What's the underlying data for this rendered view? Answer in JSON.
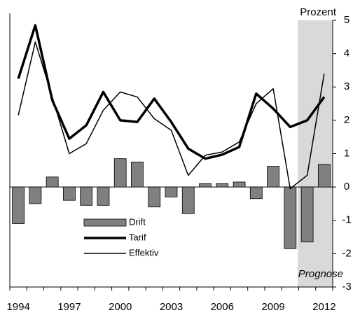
{
  "chart_data": {
    "type": "bar-line",
    "y_axis_label": "Prozent",
    "annotation": "Prognose",
    "categories": [
      "1994",
      null,
      null,
      "1997",
      null,
      null,
      "2000",
      null,
      null,
      "2003",
      null,
      null,
      "2006",
      null,
      null,
      "2009",
      null,
      null,
      "2012"
    ],
    "series": [
      {
        "name": "Drift",
        "type": "bar",
        "color": "#808080",
        "values": [
          -1.1,
          -0.5,
          0.3,
          -0.4,
          -0.55,
          -0.55,
          0.85,
          0.75,
          -0.6,
          -0.3,
          -0.8,
          0.1,
          0.1,
          0.15,
          -0.35,
          0.62,
          -1.85,
          -1.65,
          0.68
        ]
      },
      {
        "name": "Tarif",
        "type": "line",
        "color": "#000000",
        "values": [
          3.25,
          4.85,
          2.6,
          1.45,
          1.85,
          2.85,
          2.0,
          1.95,
          2.65,
          1.95,
          1.15,
          0.85,
          0.97,
          1.2,
          2.8,
          2.35,
          1.8,
          2.0,
          2.7
        ]
      },
      {
        "name": "Effektiv",
        "type": "line",
        "color": "#000000",
        "values": [
          2.15,
          4.35,
          2.7,
          1.0,
          1.3,
          2.3,
          2.85,
          2.7,
          2.05,
          1.7,
          0.35,
          0.95,
          1.05,
          1.35,
          2.5,
          2.95,
          -0.05,
          0.35,
          3.4
        ]
      }
    ],
    "ylim": [
      -3,
      5
    ],
    "yticks": [
      -3,
      -2,
      -1,
      0,
      1,
      2,
      3,
      4,
      5
    ]
  }
}
